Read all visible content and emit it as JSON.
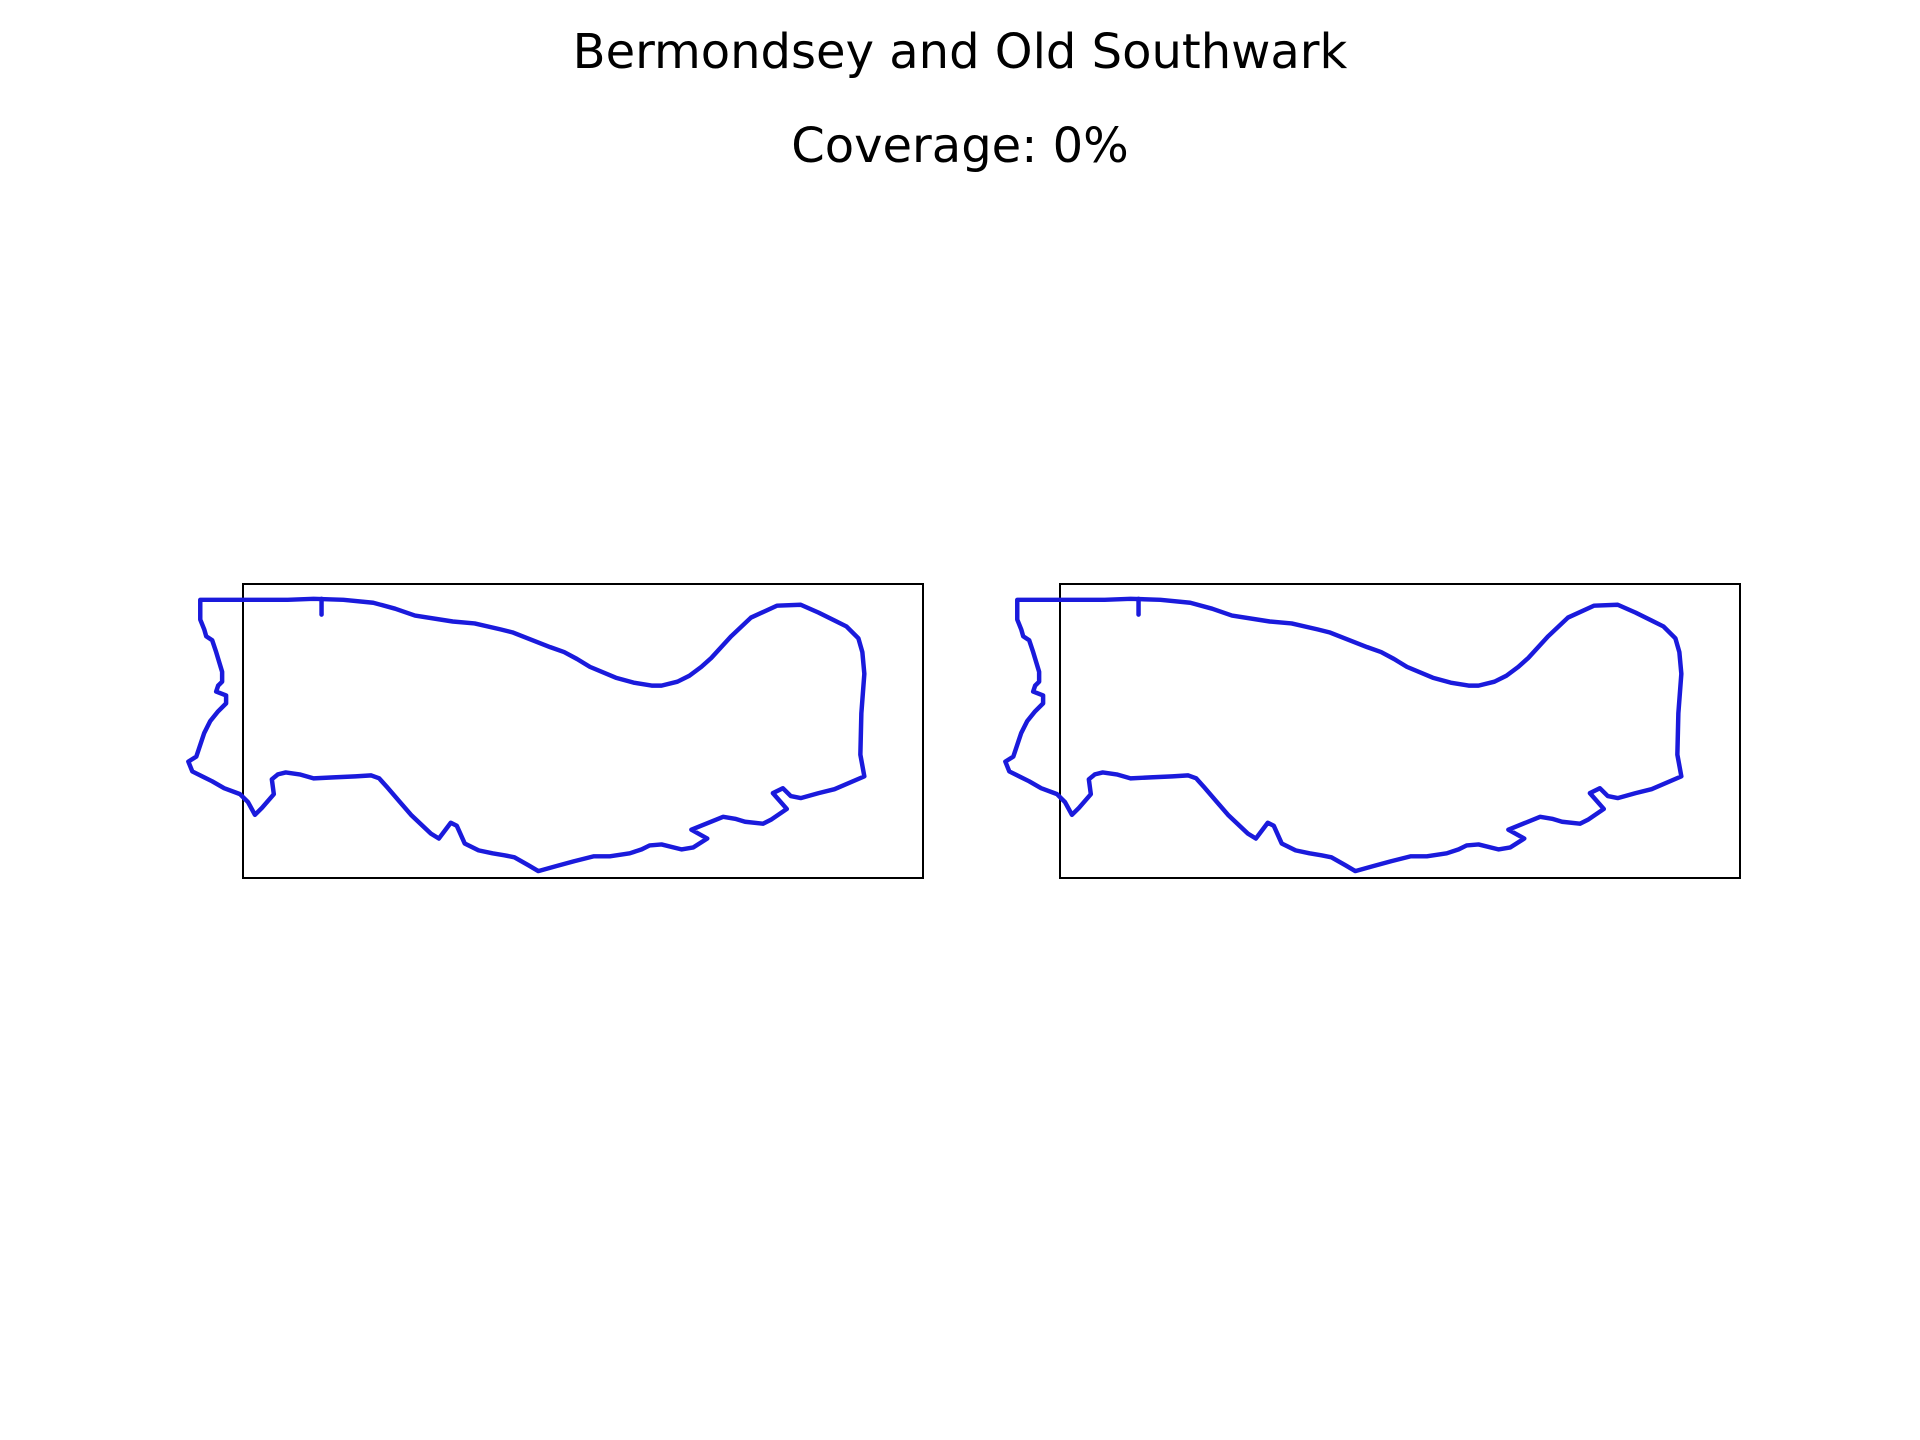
{
  "figure": {
    "title": "Bermondsey and Old Southwark",
    "subtitle": "Coverage: 0%"
  },
  "colors": {
    "boundary": "#1a1adc",
    "frame": "#000000",
    "background": "#ffffff"
  },
  "panels": [
    {
      "id": "left",
      "coverage_fill": 0
    },
    {
      "id": "right",
      "coverage_fill": 0
    }
  ]
}
